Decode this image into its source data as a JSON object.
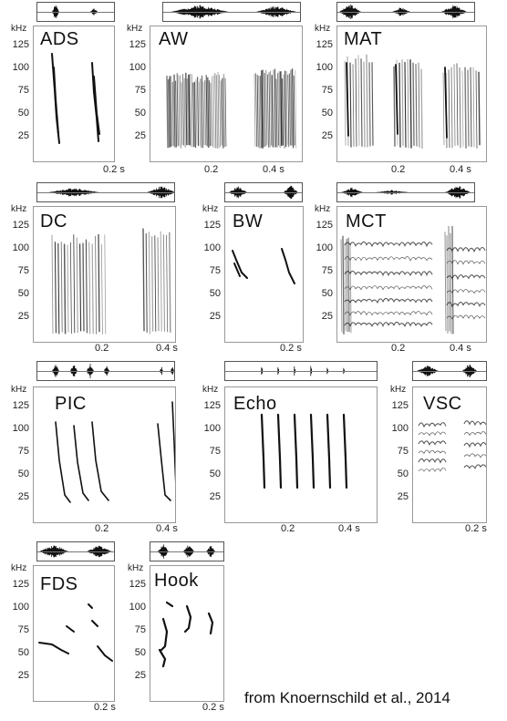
{
  "freq_unit": "kHz",
  "freq_ticks": [
    "125",
    "100",
    "75",
    "50",
    "25"
  ],
  "citation": "from Knoernschild et al., 2014",
  "panels": [
    {
      "label": "ADS",
      "x_ticks": [
        "0.2 s"
      ]
    },
    {
      "label": "AW",
      "x_ticks": [
        "0.2",
        "0.4 s"
      ]
    },
    {
      "label": "MAT",
      "x_ticks": [
        "0.2",
        "0.4 s"
      ]
    },
    {
      "label": "DC",
      "x_ticks": [
        "0.2",
        "0.4 s"
      ]
    },
    {
      "label": "BW",
      "x_ticks": [
        "0.2 s"
      ]
    },
    {
      "label": "MCT",
      "x_ticks": [
        "0.2",
        "0.4 s"
      ]
    },
    {
      "label": "PIC",
      "x_ticks": [
        "0.2",
        "0.4 s"
      ]
    },
    {
      "label": "Echo",
      "x_ticks": [
        "0.2",
        "0.4 s"
      ]
    },
    {
      "label": "VSC",
      "x_ticks": [
        "0.2 s"
      ]
    },
    {
      "label": "FDS",
      "x_ticks": [
        "0.2 s"
      ]
    },
    {
      "label": "Hook",
      "x_ticks": [
        "0.2 s"
      ]
    }
  ]
}
